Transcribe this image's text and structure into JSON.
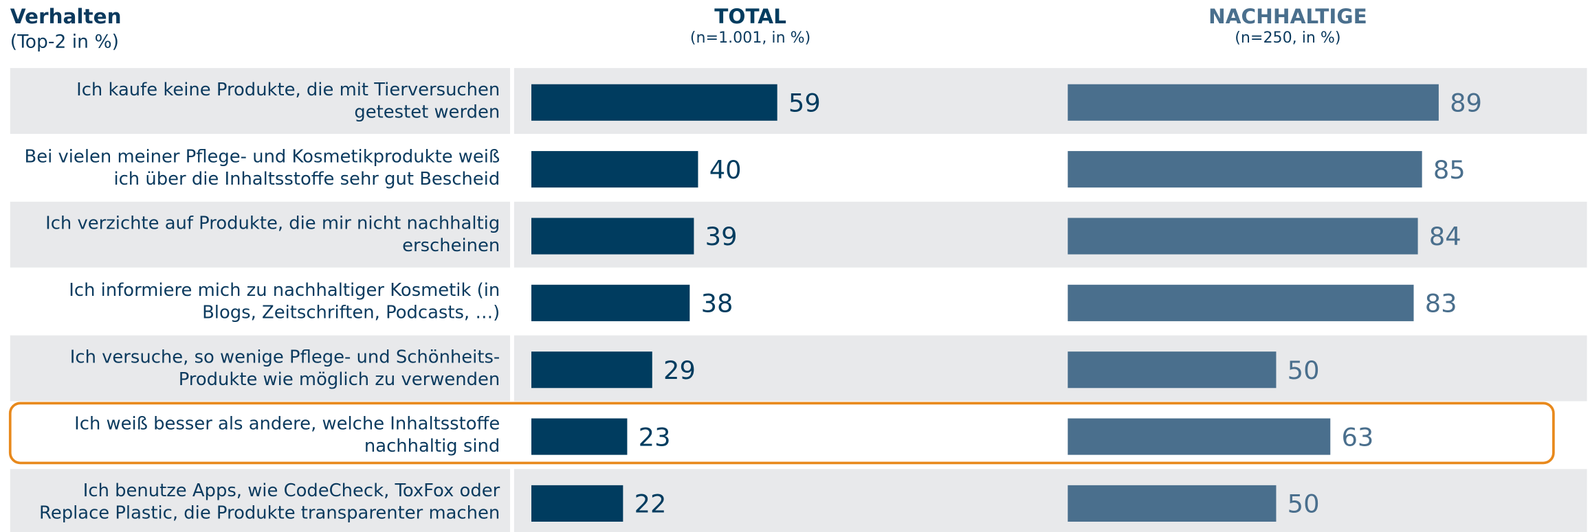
{
  "chart_data": {
    "type": "bar",
    "orientation": "horizontal",
    "title": "Verhalten",
    "subtitle": "(Top-2 in %)",
    "categories": [
      "Ich kaufe keine Produkte, die mit Tierversuchen getestet werden",
      "Bei vielen meiner Pflege- und Kosmetikprodukte weiß ich über die Inhaltsstoffe sehr gut Bescheid",
      "Ich verzichte auf Produkte, die mir nicht nachhaltig erscheinen",
      "Ich informiere mich zu nachhaltiger Kosmetik (in Blogs, Zeitschriften, Podcasts, …)",
      "Ich versuche, so wenige Pflege- und Schönheits-Produkte wie möglich zu verwenden",
      "Ich weiß besser als andere, welche Inhaltsstoffe nachhaltig sind",
      "Ich benutze Apps, wie CodeCheck, ToxFox oder Replace Plastic, die Produkte transparenter machen"
    ],
    "series": [
      {
        "name": "TOTAL",
        "subtitle": "(n=1.001, in %)",
        "color": "#003c5f",
        "values": [
          59,
          40,
          39,
          38,
          29,
          23,
          22
        ]
      },
      {
        "name": "NACHHALTIGE",
        "subtitle": "(n=250, in %)",
        "color": "#4a6f8d",
        "values": [
          89,
          85,
          84,
          83,
          50,
          63,
          50
        ]
      }
    ],
    "xlim": [
      0,
      100
    ],
    "highlight": 5,
    "highlight_color": "#e8891c"
  }
}
